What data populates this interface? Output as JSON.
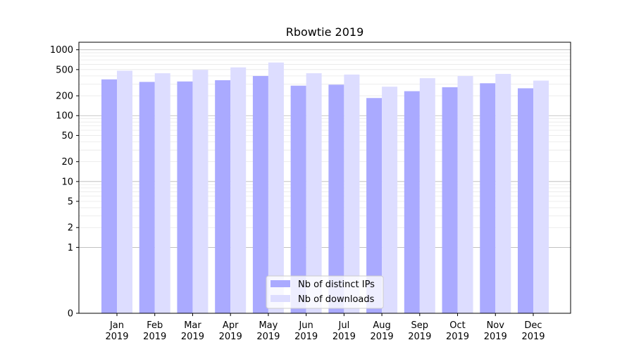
{
  "chart_data": {
    "type": "bar",
    "title": "Rbowtie 2019",
    "xlabel": "",
    "ylabel": "",
    "yscale": "symlog",
    "ylim": [
      0,
      1300
    ],
    "yticks": [
      "0",
      "1",
      "2",
      "5",
      "10",
      "20",
      "50",
      "100",
      "200",
      "500",
      "1000"
    ],
    "categories": [
      [
        "Jan",
        "2019"
      ],
      [
        "Feb",
        "2019"
      ],
      [
        "Mar",
        "2019"
      ],
      [
        "Apr",
        "2019"
      ],
      [
        "May",
        "2019"
      ],
      [
        "Jun",
        "2019"
      ],
      [
        "Jul",
        "2019"
      ],
      [
        "Aug",
        "2019"
      ],
      [
        "Sep",
        "2019"
      ],
      [
        "Oct",
        "2019"
      ],
      [
        "Nov",
        "2019"
      ],
      [
        "Dec",
        "2019"
      ]
    ],
    "series": [
      {
        "name": "Nb of distinct IPs",
        "color": "#aaaaff",
        "values": [
          355,
          325,
          330,
          345,
          400,
          285,
          295,
          185,
          235,
          270,
          310,
          260
        ]
      },
      {
        "name": "Nb of downloads",
        "color": "#ddddff",
        "values": [
          480,
          440,
          495,
          540,
          640,
          440,
          420,
          275,
          370,
          400,
          430,
          340
        ]
      }
    ],
    "legend": "bottom-center",
    "grid": true
  }
}
